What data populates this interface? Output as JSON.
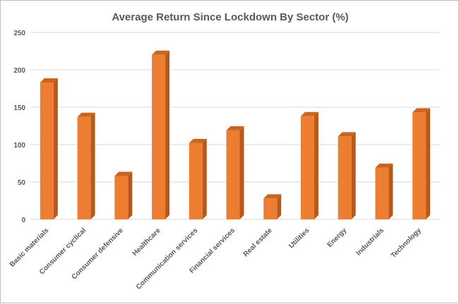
{
  "chart_data": {
    "type": "bar",
    "title": "Average Return Since Lockdown By Sector (%)",
    "xlabel": "",
    "ylabel": "",
    "categories": [
      "Basic materials",
      "Consumer cyclical",
      "Consumer defensive",
      "Healthcare",
      "Communication services",
      "Financial services",
      "Real estate",
      "Utilities",
      "Energy",
      "Industrials",
      "Technology"
    ],
    "values": [
      183,
      137,
      58,
      220,
      102,
      119,
      28,
      138,
      111,
      69,
      143
    ],
    "ylim": [
      0,
      250
    ],
    "yticks": [
      "0",
      "50",
      "100",
      "150",
      "200",
      "250"
    ],
    "grid": true,
    "legend": "none",
    "colors": {
      "bar_front": "#ed7d31",
      "bar_side": "#b55a1c",
      "bar_top": "#c8651f"
    }
  }
}
